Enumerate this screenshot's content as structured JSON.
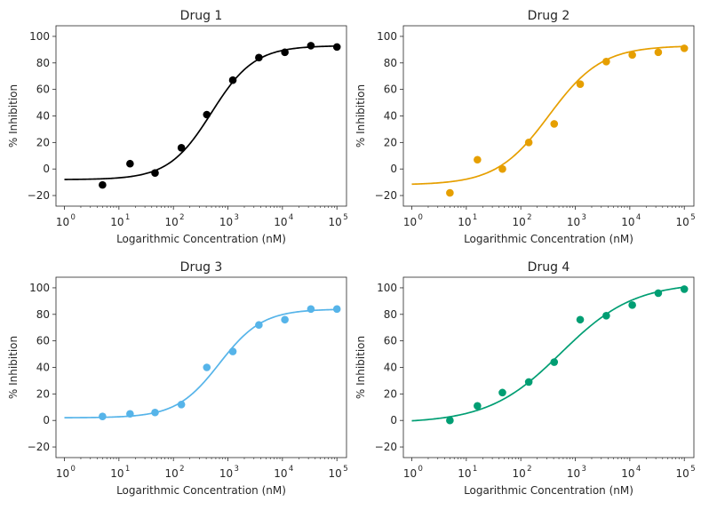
{
  "chart_data": [
    {
      "type": "scatter",
      "title": "Drug 1",
      "xlabel": "Logarithmic Concentration (nM)",
      "ylabel": "% Inhibition",
      "xscale": "log",
      "xlim": [
        0.7,
        150000
      ],
      "ylim": [
        -28,
        108
      ],
      "xticks": [
        {
          "base": "10",
          "exp": "0"
        },
        {
          "base": "10",
          "exp": "1"
        },
        {
          "base": "10",
          "exp": "2"
        },
        {
          "base": "10",
          "exp": "3"
        },
        {
          "base": "10",
          "exp": "4"
        },
        {
          "base": "10",
          "exp": "5"
        }
      ],
      "yticks": [
        "−20",
        "0",
        "20",
        "40",
        "60",
        "80",
        "100"
      ],
      "grid": false,
      "color": "#000000",
      "x": [
        5,
        16,
        46,
        140,
        410,
        1230,
        3700,
        11100,
        33300,
        100000
      ],
      "y": [
        -12,
        4,
        -3,
        16,
        41,
        67,
        84,
        88,
        93,
        92
      ],
      "fit": {
        "bottom": -8,
        "top": 93,
        "ec50": 500,
        "hill": 1.1
      }
    },
    {
      "type": "scatter",
      "title": "Drug 2",
      "xlabel": "Logarithmic Concentration (nM)",
      "ylabel": "% Inhibition",
      "xscale": "log",
      "xlim": [
        0.7,
        150000
      ],
      "ylim": [
        -28,
        108
      ],
      "xticks": [
        {
          "base": "10",
          "exp": "0"
        },
        {
          "base": "10",
          "exp": "1"
        },
        {
          "base": "10",
          "exp": "2"
        },
        {
          "base": "10",
          "exp": "3"
        },
        {
          "base": "10",
          "exp": "4"
        },
        {
          "base": "10",
          "exp": "5"
        }
      ],
      "yticks": [
        "−20",
        "0",
        "20",
        "40",
        "60",
        "80",
        "100"
      ],
      "grid": false,
      "color": "#E69F00",
      "x": [
        5,
        16,
        46,
        140,
        410,
        1230,
        3700,
        11100,
        33300,
        100000
      ],
      "y": [
        -18,
        7,
        0,
        20,
        34,
        64,
        81,
        86,
        88,
        91
      ],
      "fit": {
        "bottom": -12,
        "top": 93,
        "ec50": 330,
        "hill": 0.9
      }
    },
    {
      "type": "scatter",
      "title": "Drug 3",
      "xlabel": "Logarithmic Concentration (nM)",
      "ylabel": "% Inhibition",
      "xscale": "log",
      "xlim": [
        0.7,
        150000
      ],
      "ylim": [
        -28,
        108
      ],
      "xticks": [
        {
          "base": "10",
          "exp": "0"
        },
        {
          "base": "10",
          "exp": "1"
        },
        {
          "base": "10",
          "exp": "2"
        },
        {
          "base": "10",
          "exp": "3"
        },
        {
          "base": "10",
          "exp": "4"
        },
        {
          "base": "10",
          "exp": "5"
        }
      ],
      "yticks": [
        "−20",
        "0",
        "20",
        "40",
        "60",
        "80",
        "100"
      ],
      "grid": false,
      "color": "#56B4E9",
      "x": [
        5,
        16,
        46,
        140,
        410,
        1230,
        3700,
        11100,
        33300,
        100000
      ],
      "y": [
        3,
        5,
        6,
        12,
        40,
        52,
        72,
        76,
        84,
        84
      ],
      "fit": {
        "bottom": 2,
        "top": 84,
        "ec50": 700,
        "hill": 1.1
      }
    },
    {
      "type": "scatter",
      "title": "Drug 4",
      "xlabel": "Logarithmic Concentration (nM)",
      "ylabel": "% Inhibition",
      "xscale": "log",
      "xlim": [
        0.7,
        150000
      ],
      "ylim": [
        -28,
        108
      ],
      "xticks": [
        {
          "base": "10",
          "exp": "0"
        },
        {
          "base": "10",
          "exp": "1"
        },
        {
          "base": "10",
          "exp": "2"
        },
        {
          "base": "10",
          "exp": "3"
        },
        {
          "base": "10",
          "exp": "4"
        },
        {
          "base": "10",
          "exp": "5"
        }
      ],
      "yticks": [
        "−20",
        "0",
        "20",
        "40",
        "60",
        "80",
        "100"
      ],
      "grid": false,
      "color": "#009E73",
      "x": [
        5,
        16,
        46,
        140,
        410,
        1230,
        3700,
        11100,
        33300,
        100000
      ],
      "y": [
        0,
        11,
        21,
        29,
        44,
        76,
        79,
        87,
        96,
        99
      ],
      "fit": {
        "bottom": -2,
        "top": 104,
        "ec50": 550,
        "hill": 0.65
      }
    }
  ]
}
